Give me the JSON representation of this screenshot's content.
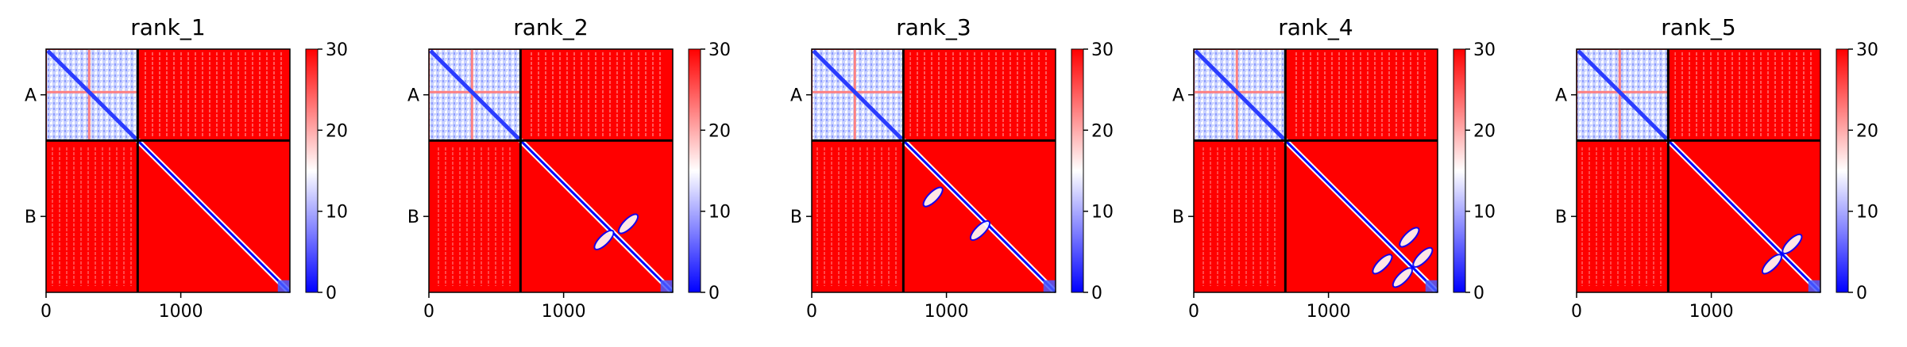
{
  "colors": {
    "low": "#0000ff",
    "mid": "#ffffff",
    "high": "#ff0000",
    "divider": "#000000"
  },
  "chart_data": [
    {
      "type": "heatmap",
      "title": "rank_1",
      "chains": [
        "A",
        "B"
      ],
      "chain_boundary": 680,
      "length": 1810,
      "xticks": [
        0,
        1000
      ],
      "xtick_labels": [
        "0",
        "1000"
      ],
      "colorbar": {
        "min": 0,
        "max": 30,
        "ticks": [
          0,
          10,
          20,
          30
        ],
        "tick_labels": [
          "0",
          "10",
          "20",
          "30"
        ],
        "cmap": "bwr"
      },
      "intra_A_subdomain_boundary": 320,
      "diagonal_blobs": []
    },
    {
      "type": "heatmap",
      "title": "rank_2",
      "chains": [
        "A",
        "B"
      ],
      "chain_boundary": 680,
      "length": 1810,
      "xticks": [
        0,
        1000
      ],
      "xtick_labels": [
        "0",
        "1000"
      ],
      "colorbar": {
        "min": 0,
        "max": 30,
        "ticks": [
          0,
          10,
          20,
          30
        ],
        "tick_labels": [
          "0",
          "10",
          "20",
          "30"
        ],
        "cmap": "bwr"
      },
      "intra_A_subdomain_boundary": 320,
      "diagonal_blobs": [
        [
          1300,
          1420
        ],
        [
          1480,
          1300
        ]
      ]
    },
    {
      "type": "heatmap",
      "title": "rank_3",
      "chains": [
        "A",
        "B"
      ],
      "chain_boundary": 680,
      "length": 1810,
      "xticks": [
        0,
        1000
      ],
      "xtick_labels": [
        "0",
        "1000"
      ],
      "colorbar": {
        "min": 0,
        "max": 30,
        "ticks": [
          0,
          10,
          20,
          30
        ],
        "tick_labels": [
          "0",
          "10",
          "20",
          "30"
        ],
        "cmap": "bwr"
      },
      "intra_A_subdomain_boundary": 320,
      "diagonal_blobs": [
        [
          900,
          1100
        ],
        [
          1250,
          1350
        ]
      ]
    },
    {
      "type": "heatmap",
      "title": "rank_4",
      "chains": [
        "A",
        "B"
      ],
      "chain_boundary": 680,
      "length": 1810,
      "xticks": [
        0,
        1000
      ],
      "xtick_labels": [
        "0",
        "1000"
      ],
      "colorbar": {
        "min": 0,
        "max": 30,
        "ticks": [
          0,
          10,
          20,
          30
        ],
        "tick_labels": [
          "0",
          "10",
          "20",
          "30"
        ],
        "cmap": "bwr"
      },
      "intra_A_subdomain_boundary": 320,
      "diagonal_blobs": [
        [
          1400,
          1600
        ],
        [
          1600,
          1400
        ],
        [
          1550,
          1700
        ],
        [
          1700,
          1550
        ]
      ]
    },
    {
      "type": "heatmap",
      "title": "rank_5",
      "chains": [
        "A",
        "B"
      ],
      "chain_boundary": 680,
      "length": 1810,
      "xticks": [
        0,
        1000
      ],
      "xtick_labels": [
        "0",
        "1000"
      ],
      "colorbar": {
        "min": 0,
        "max": 30,
        "ticks": [
          0,
          10,
          20,
          30
        ],
        "tick_labels": [
          "0",
          "10",
          "20",
          "30"
        ],
        "cmap": "bwr"
      },
      "intra_A_subdomain_boundary": 320,
      "diagonal_blobs": [
        [
          1450,
          1600
        ],
        [
          1600,
          1450
        ]
      ]
    }
  ]
}
